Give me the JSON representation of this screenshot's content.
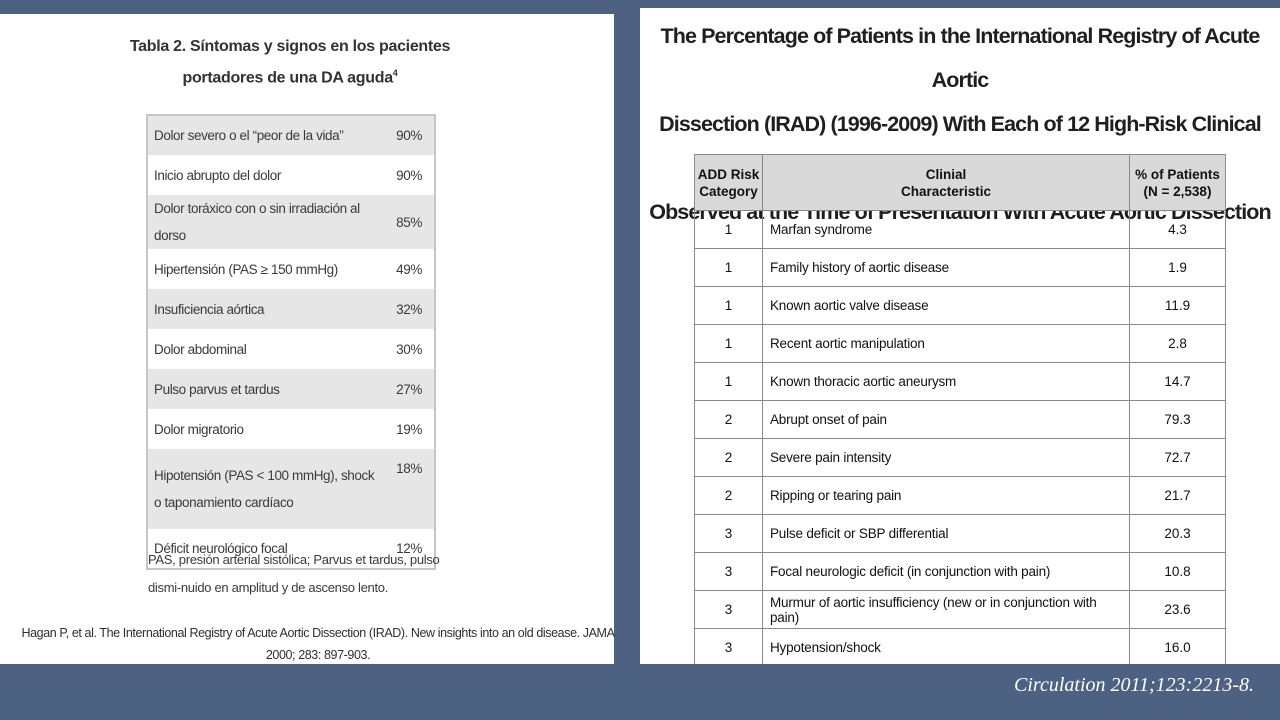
{
  "left": {
    "title_line1": "Tabla 2. Síntomas y signos en los pacientes",
    "title_line2": "portadores de una DA aguda",
    "title_sup": "4",
    "rows": [
      {
        "label": "Dolor severo o el “peor de la vida”",
        "value": "90%"
      },
      {
        "label": "Inicio abrupto del dolor",
        "value": "90%"
      },
      {
        "label": "Dolor toráxico con o sin irradiación al dorso",
        "value": "85%"
      },
      {
        "label": "Hipertensión (PAS ≥ 150 mmHg)",
        "value": "49%"
      },
      {
        "label": "Insuficiencia aórtica",
        "value": "32%"
      },
      {
        "label": "Dolor abdominal",
        "value": "30%"
      },
      {
        "label": "Pulso parvus et tardus",
        "value": "27%"
      },
      {
        "label": "Dolor migratorio",
        "value": "19%"
      },
      {
        "label": "Hipotensión (PAS < 100 mmHg), shock o taponamiento cardíaco",
        "value": "18%"
      },
      {
        "label": "Déficit neurológico focal",
        "value": "12%"
      }
    ],
    "footnote": "PAS, presión arterial sistólica; Parvus et tardus, pulso dismi-nuido en amplitud y de ascenso lento.",
    "reference": "Hagan P, et al. The International Registry of Acute Aortic Dissection (IRAD). New insights into an old disease. JAMA 2000; 283: 897-903."
  },
  "right": {
    "title_line1": "The Percentage of Patients in the International Registry of Acute Aortic",
    "title_line2": "Dissection (IRAD) (1996-2009) With Each of 12 High-Risk Clinical Markers",
    "title_line3": "Observed at the Time of Presentation With Acute Aortic Dissection",
    "headers": {
      "category_l1": "ADD Risk",
      "category_l2": "Category",
      "characteristic_l1": "Clinial",
      "characteristic_l2": "Characteristic",
      "percent_l1": "% of Patients",
      "percent_l2": "(N = 2,538)"
    },
    "rows": [
      {
        "category": "1",
        "characteristic": "Marfan syndrome",
        "percent": "4.3"
      },
      {
        "category": "1",
        "characteristic": "Family history of aortic disease",
        "percent": "1.9"
      },
      {
        "category": "1",
        "characteristic": "Known aortic valve disease",
        "percent": "11.9"
      },
      {
        "category": "1",
        "characteristic": "Recent aortic manipulation",
        "percent": "2.8"
      },
      {
        "category": "1",
        "characteristic": "Known thoracic aortic aneurysm",
        "percent": "14.7"
      },
      {
        "category": "2",
        "characteristic": "Abrupt onset of pain",
        "percent": "79.3"
      },
      {
        "category": "2",
        "characteristic": "Severe pain intensity",
        "percent": "72.7"
      },
      {
        "category": "2",
        "characteristic": "Ripping or tearing pain",
        "percent": "21.7"
      },
      {
        "category": "3",
        "characteristic": "Pulse deficit or SBP differential",
        "percent": "20.3"
      },
      {
        "category": "3",
        "characteristic": "Focal neurologic deficit (in conjunction with pain)",
        "percent": "10.8"
      },
      {
        "category": "3",
        "characteristic": "Murmur of aortic insufficiency (new or in conjunction with pain)",
        "percent": "23.6"
      },
      {
        "category": "3",
        "characteristic": "Hypotension/shock",
        "percent": "16.0"
      }
    ]
  },
  "citation": "Circulation 2011;123:2213-8."
}
